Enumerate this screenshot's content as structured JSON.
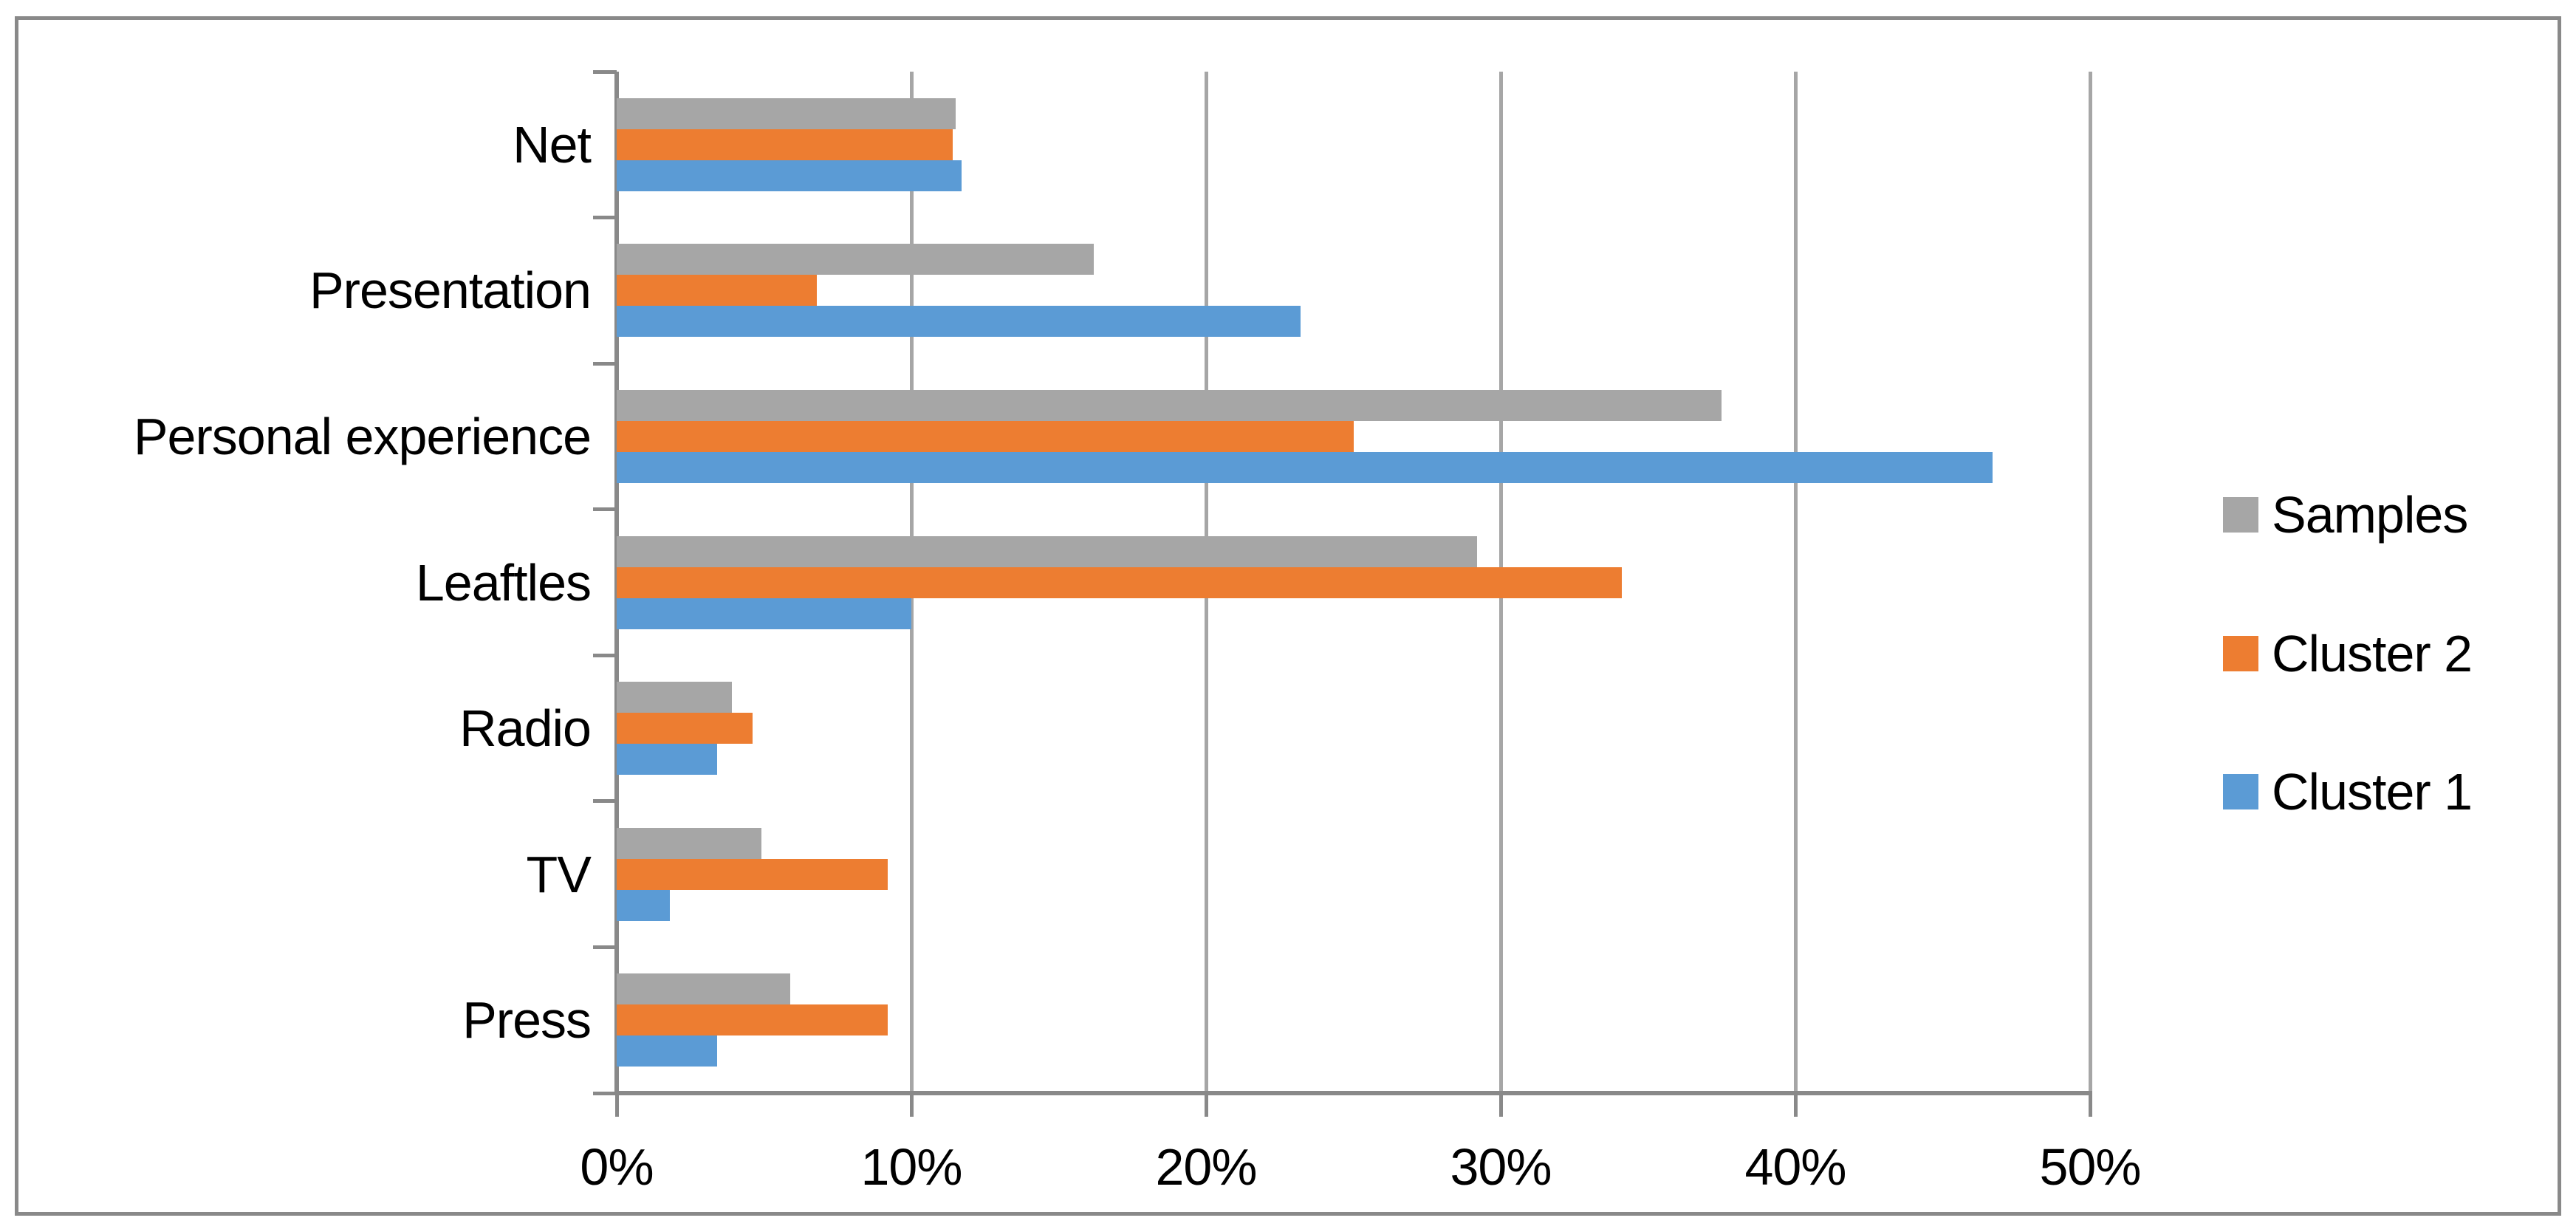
{
  "chart_data": {
    "type": "bar",
    "orientation": "horizontal",
    "title": "",
    "categories": [
      "Net",
      "Presentation",
      "Personal experience",
      "Leaftles",
      "Radio",
      "TV",
      "Press"
    ],
    "series": [
      {
        "name": "Samples",
        "color": "#A6A6A6",
        "values": [
          11.5,
          16.2,
          37.5,
          29.2,
          3.9,
          4.9,
          5.9
        ]
      },
      {
        "name": "Cluster 2",
        "color": "#ED7D31",
        "values": [
          11.4,
          6.8,
          25.0,
          34.1,
          4.6,
          9.2,
          9.2
        ]
      },
      {
        "name": "Cluster 1",
        "color": "#5B9BD5",
        "values": [
          11.7,
          23.2,
          46.7,
          10.0,
          3.4,
          1.8,
          3.4
        ]
      }
    ],
    "x_axis": {
      "min": 0,
      "max": 50,
      "step": 10,
      "unit": "percent",
      "tick_labels": [
        "0%",
        "10%",
        "20%",
        "30%",
        "40%",
        "50%"
      ]
    },
    "y_axis": {
      "label": ""
    },
    "legend": {
      "position": "right",
      "entries": [
        "Samples",
        "Cluster 2",
        "Cluster 1"
      ]
    },
    "grid": true
  },
  "colors": {
    "series_samples": "#A6A6A6",
    "series_cluster2": "#ED7D31",
    "series_cluster1": "#5B9BD5",
    "axis": "#898989",
    "gridline": "#A6A6A6",
    "border": "#898989",
    "background": "#FFFFFF",
    "text": "#000000"
  }
}
